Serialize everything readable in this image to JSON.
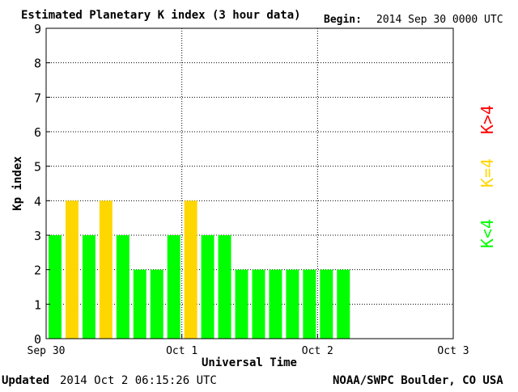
{
  "header": {
    "title": "Estimated Planetary K index (3 hour data)",
    "begin_label": "Begin:",
    "begin_value": "2014 Sep 30 0000 UTC"
  },
  "footer": {
    "updated_label": "Updated",
    "updated_value": "2014 Oct  2 06:15:26 UTC",
    "source": "NOAA/SWPC Boulder, CO USA"
  },
  "legend": {
    "high": "K>4",
    "equal": "K=4",
    "low": "K<4"
  },
  "colors": {
    "low": "#00ff00",
    "equal": "#ffd700",
    "high": "#ff0000",
    "frame": "#000000",
    "grid": "#000000",
    "background": "#ffffff"
  },
  "chart_data": {
    "type": "bar",
    "title": "Estimated Planetary K index (3 hour data)",
    "xlabel": "Universal Time",
    "ylabel": "Kp index",
    "ylim": [
      0,
      9
    ],
    "yticks": [
      "0",
      "1",
      "2",
      "3",
      "4",
      "5",
      "6",
      "7",
      "8",
      "9"
    ],
    "xticks": [
      "Sep 30",
      "Oct 1",
      "Oct 2",
      "Oct 3"
    ],
    "xlim_intervals": 24,
    "interval_hours": 3,
    "grid": true,
    "categories": [
      "Sep 30 00-03",
      "Sep 30 03-06",
      "Sep 30 06-09",
      "Sep 30 09-12",
      "Sep 30 12-15",
      "Sep 30 15-18",
      "Sep 30 18-21",
      "Sep 30 21-24",
      "Oct 1 00-03",
      "Oct 1 03-06",
      "Oct 1 06-09",
      "Oct 1 09-12",
      "Oct 1 12-15",
      "Oct 1 15-18",
      "Oct 1 18-21",
      "Oct 1 21-24",
      "Oct 2 00-03",
      "Oct 2 03-06"
    ],
    "values": [
      3,
      4,
      3,
      4,
      3,
      2,
      2,
      3,
      4,
      3,
      3,
      2,
      2,
      2,
      2,
      2,
      2,
      2
    ]
  }
}
